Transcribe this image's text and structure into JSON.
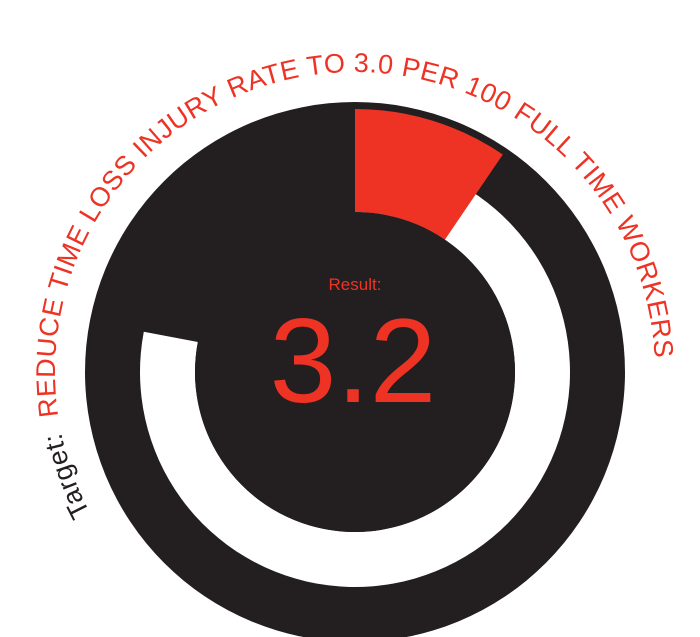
{
  "chart_data": {
    "type": "gauge",
    "target_label": "Target:",
    "target_text": "REDUCE TIME LOSS INJURY RATE TO 3.0 PER 100 FULL TIME WORKERS",
    "result_label": "Result:",
    "result_value": "3.2",
    "segments": [
      {
        "part": "red",
        "value": 0.095,
        "color": "#ee3224"
      },
      {
        "part": "white",
        "value": 0.78,
        "color": "#ffffff"
      }
    ]
  },
  "colors": {
    "dark": "#231f20",
    "accent": "#ee3224",
    "white": "#ffffff"
  }
}
